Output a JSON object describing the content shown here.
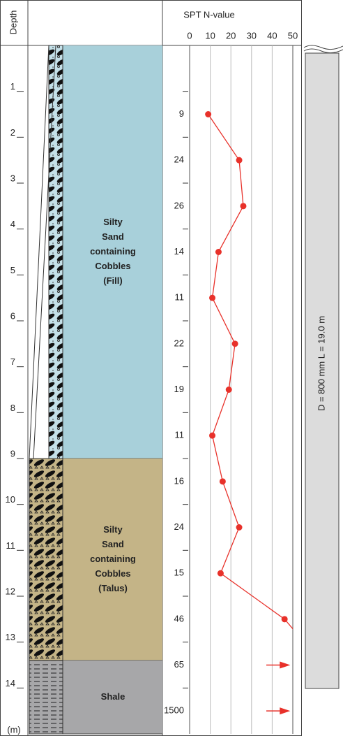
{
  "chart_data": {
    "type": "spt-log",
    "title": "SPT N-value",
    "depth_label": "Depth",
    "depth_unit": "(m)",
    "ylim": [
      0,
      15
    ],
    "depth_ticks": [
      1,
      2,
      3,
      4,
      5,
      6,
      7,
      8,
      9,
      10,
      11,
      12,
      13,
      14
    ],
    "xlim": [
      0,
      50
    ],
    "xticks": [
      0,
      10,
      20,
      30,
      40,
      50
    ],
    "grid": true,
    "color": "#e8312a",
    "spt_depths": [
      1.5,
      2.5,
      3.5,
      4.5,
      5.5,
      6.5,
      7.5,
      8.5,
      9.5,
      10.5,
      11.5,
      12.5,
      13.5,
      14.5
    ],
    "spt_values": [
      9,
      24,
      26,
      14,
      11,
      22,
      19,
      11,
      16,
      24,
      15,
      46,
      65,
      1500
    ],
    "layers": [
      {
        "lines": [
          "Silty",
          "Sand",
          "containing",
          "Cobbles",
          "(Fill)"
        ],
        "top": 0,
        "bottom": 9,
        "color": "#a8d0da"
      },
      {
        "lines": [
          "Silty",
          "Sand",
          "containing",
          "Cobbles",
          "(Talus)"
        ],
        "top": 9,
        "bottom": 13.4,
        "color": "#c4b487"
      },
      {
        "lines": [
          "Shale"
        ],
        "top": 13.4,
        "bottom": 15,
        "color": "#a7a7a9"
      }
    ],
    "pile_label": "D = 800 mm  L = 19.0 m"
  }
}
